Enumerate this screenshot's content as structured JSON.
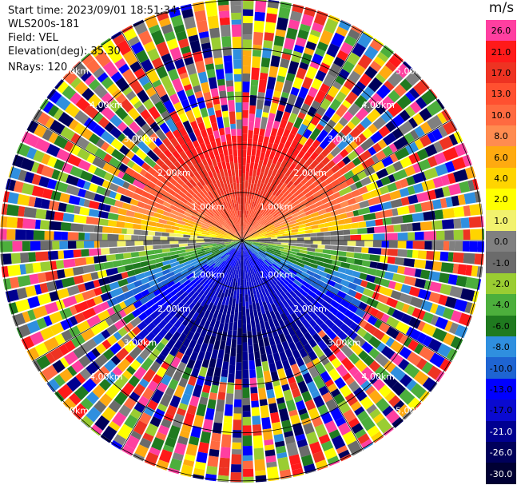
{
  "info": {
    "start_time": "Start time: 2023/09/01 18:51:34",
    "instrument": "WLS200s-181",
    "field": "Field: VEL",
    "elevation": "Elevation(deg): 35.30",
    "nrays": "NRays: 120"
  },
  "colorbar": {
    "unit": "m/s",
    "levels": [
      {
        "label": "26.0",
        "color": "#ff3fa0",
        "text": "#000000"
      },
      {
        "label": "21.0",
        "color": "#ff1a1a",
        "text": "#000000"
      },
      {
        "label": "17.0",
        "color": "#ee3322",
        "text": "#000000"
      },
      {
        "label": "13.0",
        "color": "#ff5030",
        "text": "#000000"
      },
      {
        "label": "10.0",
        "color": "#ff6a40",
        "text": "#000000"
      },
      {
        "label": "8.0",
        "color": "#ff8c50",
        "text": "#000000"
      },
      {
        "label": "6.0",
        "color": "#ffaa10",
        "text": "#000000"
      },
      {
        "label": "4.0",
        "color": "#ffd400",
        "text": "#000000"
      },
      {
        "label": "2.0",
        "color": "#ffff00",
        "text": "#000000"
      },
      {
        "label": "1.0",
        "color": "#f2f26e",
        "text": "#000000"
      },
      {
        "label": "0.0",
        "color": "#808080",
        "text": "#000000"
      },
      {
        "label": "-1.0",
        "color": "#6b6b6b",
        "text": "#000000"
      },
      {
        "label": "-2.0",
        "color": "#9acd32",
        "text": "#000000"
      },
      {
        "label": "-4.0",
        "color": "#4caf3c",
        "text": "#000000"
      },
      {
        "label": "-6.0",
        "color": "#1f7a1f",
        "text": "#000000"
      },
      {
        "label": "-8.0",
        "color": "#2f8fdf",
        "text": "#000000"
      },
      {
        "label": "-10.0",
        "color": "#1e64d2",
        "text": "#000000"
      },
      {
        "label": "-13.0",
        "color": "#0000ff",
        "text": "#000000"
      },
      {
        "label": "-17.0",
        "color": "#0a0ad0",
        "text": "#000000"
      },
      {
        "label": "-21.0",
        "color": "#000090",
        "text": "#ffffff"
      },
      {
        "label": "-26.0",
        "color": "#00005a",
        "text": "#ffffff"
      },
      {
        "label": "-30.0",
        "color": "#000033",
        "text": "#ffffff"
      }
    ]
  },
  "chart_data": {
    "type": "heatmap",
    "subtype": "polar-ppi",
    "field": "VEL",
    "unit": "m/s",
    "nrays": 120,
    "max_range_km": 5.0,
    "range_ring_labels": [
      "1.00km",
      "2.00km",
      "3.00km",
      "4.00km",
      "5.00km"
    ],
    "spoke_angles_deg": [
      0,
      30,
      60,
      90,
      120,
      150,
      180,
      210,
      240,
      270,
      300,
      330
    ],
    "valid_data_range_km": [
      0.0,
      3.0
    ],
    "noise_beyond_km": 3.0,
    "velocity_pattern": {
      "north_sector": "positive (about 10 to 26 m/s)",
      "horizon_band": "near zero (about -1 to 2 m/s)",
      "south_sector": "negative (about -8 to -21 m/s)"
    }
  }
}
